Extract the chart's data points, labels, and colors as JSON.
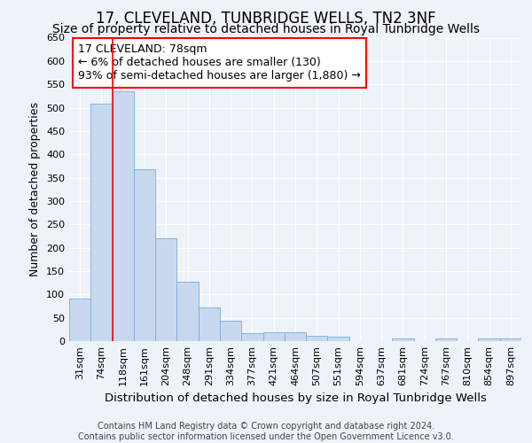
{
  "title": "17, CLEVELAND, TUNBRIDGE WELLS, TN2 3NF",
  "subtitle": "Size of property relative to detached houses in Royal Tunbridge Wells",
  "xlabel": "Distribution of detached houses by size in Royal Tunbridge Wells",
  "ylabel": "Number of detached properties",
  "footer_line1": "Contains HM Land Registry data © Crown copyright and database right 2024.",
  "footer_line2": "Contains public sector information licensed under the Open Government Licence v3.0.",
  "categories": [
    "31sqm",
    "74sqm",
    "118sqm",
    "161sqm",
    "204sqm",
    "248sqm",
    "291sqm",
    "334sqm",
    "377sqm",
    "421sqm",
    "464sqm",
    "507sqm",
    "551sqm",
    "594sqm",
    "637sqm",
    "681sqm",
    "724sqm",
    "767sqm",
    "810sqm",
    "854sqm",
    "897sqm"
  ],
  "values": [
    92,
    508,
    535,
    368,
    220,
    128,
    72,
    43,
    17,
    19,
    19,
    11,
    9,
    0,
    0,
    5,
    0,
    5,
    0,
    5,
    5
  ],
  "bar_color": "#c8d9ef",
  "bar_edge_color": "#7aadd4",
  "red_line_x": 1.5,
  "annotation_text": "17 CLEVELAND: 78sqm\n← 6% of detached houses are smaller (130)\n93% of semi-detached houses are larger (1,880) →",
  "annotation_box_color": "white",
  "annotation_box_edge_color": "red",
  "red_line_color": "red",
  "ylim": [
    0,
    650
  ],
  "yticks": [
    0,
    50,
    100,
    150,
    200,
    250,
    300,
    350,
    400,
    450,
    500,
    550,
    600,
    650
  ],
  "background_color": "#eef2f9",
  "grid_color": "white",
  "title_fontsize": 12,
  "subtitle_fontsize": 10,
  "xlabel_fontsize": 9.5,
  "ylabel_fontsize": 9,
  "tick_fontsize": 8,
  "annotation_fontsize": 9,
  "footer_fontsize": 7
}
